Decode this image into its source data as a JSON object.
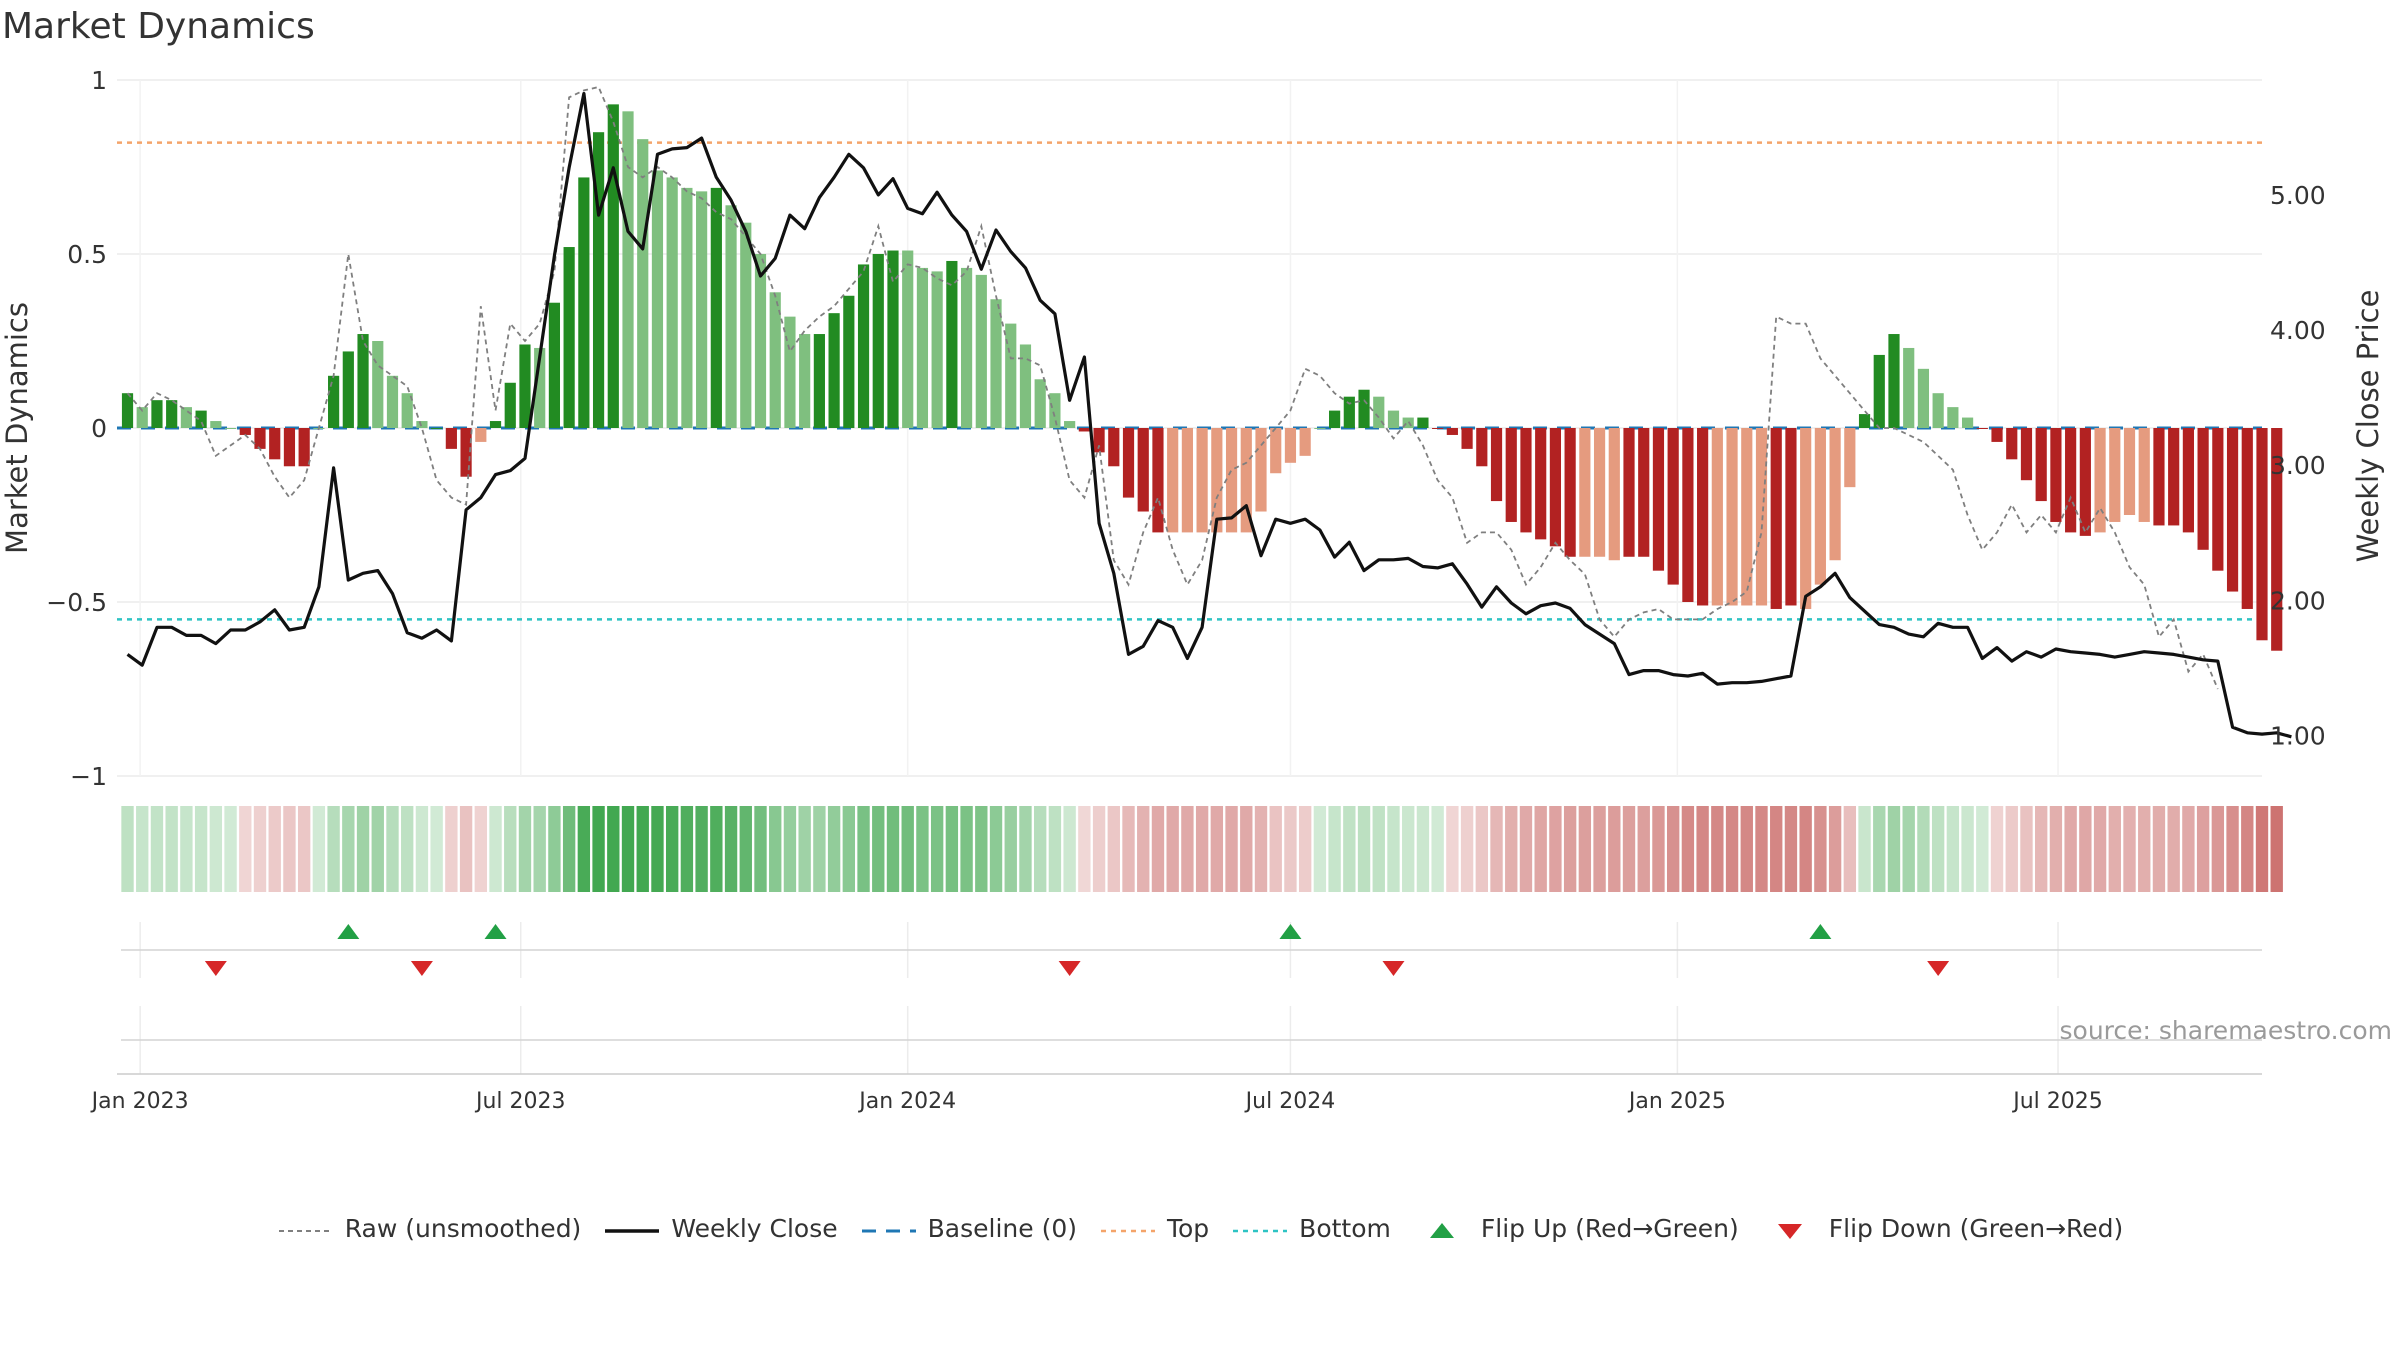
{
  "title": "Market Dynamics",
  "source": "source: sharemaestro.com",
  "colors": {
    "green_dark": "#228b22",
    "green_light": "#7fbf7f",
    "red_dark": "#b22222",
    "red_light": "#e59b7f",
    "raw": "#7f7f7f",
    "close": "#111111",
    "baseline": "#1f77b4",
    "top": "#f4a46a",
    "bottom": "#2ec4c4",
    "flip_up": "#22a045",
    "flip_down": "#d62728",
    "strip_green": "#2e9e3e",
    "strip_red": "#c0504d"
  },
  "legend": [
    {
      "label": "Raw (unsmoothed)",
      "key": "raw"
    },
    {
      "label": "Weekly Close",
      "key": "close"
    },
    {
      "label": "Baseline (0)",
      "key": "baseline"
    },
    {
      "label": "Top",
      "key": "top"
    },
    {
      "label": "Bottom",
      "key": "bottom"
    },
    {
      "label": "Flip Up (Red→Green)",
      "key": "flip_up"
    },
    {
      "label": "Flip Down (Green→Red)",
      "key": "flip_down"
    }
  ],
  "chart_data": {
    "type": "bar",
    "title": "Market Dynamics",
    "ylabel_left": "Market Dynamics",
    "ylabel_right": "Weekly Close Price",
    "ylim_left": [
      -1,
      1
    ],
    "ylim_right": [
      0.7,
      5.85
    ],
    "yticks_left": [
      1,
      0.5,
      0,
      -0.5,
      -1
    ],
    "yticks_left_labels": [
      "1",
      "0.5",
      "0",
      "−0.5",
      "−1"
    ],
    "yticks_right": [
      5.0,
      4.0,
      3.0,
      2.0,
      1.0
    ],
    "yticks_right_labels": [
      "5.00",
      "4.00",
      "3.00",
      "2.00",
      "1.00"
    ],
    "xticks": [
      "2023-01-01",
      "2023-07-01",
      "2024-01-01",
      "2024-07-01",
      "2025-01-01",
      "2025-07-01"
    ],
    "xtick_labels": [
      "Jan 2023",
      "Jul 2023",
      "Jan 2024",
      "Jul 2024",
      "Jan 2025",
      "Jul 2025"
    ],
    "x_range": [
      "2022-12-21",
      "2025-10-06"
    ],
    "grid": true,
    "legend_position": "bottom",
    "top_line": 0.82,
    "bottom_line": -0.55,
    "baseline": 0,
    "week_start": "2022-12-26",
    "series": [
      {
        "name": "Market Dynamics",
        "values": [
          0.1,
          0.06,
          0.08,
          0.08,
          0.06,
          0.05,
          0.02,
          0.0,
          -0.02,
          -0.06,
          -0.09,
          -0.11,
          -0.11,
          0.0,
          0.15,
          0.22,
          0.27,
          0.25,
          0.15,
          0.1,
          0.02,
          0.0,
          -0.06,
          -0.14,
          -0.04,
          0.02,
          0.13,
          0.24,
          0.23,
          0.36,
          0.52,
          0.72,
          0.85,
          0.93,
          0.91,
          0.83,
          0.74,
          0.72,
          0.69,
          0.68,
          0.69,
          0.64,
          0.59,
          0.5,
          0.39,
          0.32,
          0.27,
          0.27,
          0.33,
          0.38,
          0.47,
          0.5,
          0.51,
          0.51,
          0.46,
          0.45,
          0.48,
          0.46,
          0.44,
          0.37,
          0.3,
          0.24,
          0.14,
          0.1,
          0.02,
          -0.01,
          -0.07,
          -0.11,
          -0.2,
          -0.24,
          -0.3,
          -0.3,
          -0.3,
          -0.3,
          -0.3,
          -0.3,
          -0.3,
          -0.24,
          -0.13,
          -0.1,
          -0.08,
          0.0,
          0.05,
          0.09,
          0.11,
          0.09,
          0.05,
          0.03,
          0.03,
          0.0,
          -0.02,
          -0.06,
          -0.11,
          -0.21,
          -0.27,
          -0.3,
          -0.32,
          -0.34,
          -0.37,
          -0.37,
          -0.37,
          -0.38,
          -0.37,
          -0.37,
          -0.41,
          -0.45,
          -0.5,
          -0.51,
          -0.51,
          -0.51,
          -0.51,
          -0.51,
          -0.52,
          -0.51,
          -0.52,
          -0.45,
          -0.38,
          -0.17,
          0.04,
          0.21,
          0.27,
          0.23,
          0.17,
          0.1,
          0.06,
          0.03,
          0.0,
          -0.04,
          -0.09,
          -0.15,
          -0.21,
          -0.27,
          -0.3,
          -0.31,
          -0.3,
          -0.27,
          -0.25,
          -0.27,
          -0.28,
          -0.28,
          -0.3,
          -0.35,
          -0.41,
          -0.47,
          -0.52,
          -0.61,
          -0.64
        ],
        "colors": [
          "dg",
          "lg",
          "dg",
          "dg",
          "lg",
          "dg",
          "lg",
          "lg",
          "dr",
          "dr",
          "dr",
          "dr",
          "dr",
          "lg",
          "dg",
          "dg",
          "dg",
          "lg",
          "lg",
          "lg",
          "lg",
          "dg",
          "dr",
          "dr",
          "lr",
          "dg",
          "dg",
          "dg",
          "lg",
          "dg",
          "dg",
          "dg",
          "dg",
          "dg",
          "lg",
          "lg",
          "lg",
          "lg",
          "lg",
          "lg",
          "dg",
          "lg",
          "lg",
          "lg",
          "lg",
          "lg",
          "lg",
          "dg",
          "dg",
          "dg",
          "dg",
          "dg",
          "dg",
          "lg",
          "lg",
          "lg",
          "dg",
          "lg",
          "lg",
          "lg",
          "lg",
          "lg",
          "lg",
          "lg",
          "lg",
          "dr",
          "dr",
          "dr",
          "dr",
          "dr",
          "dr",
          "lr",
          "lr",
          "lr",
          "lr",
          "lr",
          "lr",
          "lr",
          "lr",
          "lr",
          "lr",
          "lg",
          "dg",
          "dg",
          "dg",
          "lg",
          "lg",
          "lg",
          "dg",
          "dr",
          "dr",
          "dr",
          "dr",
          "dr",
          "dr",
          "dr",
          "dr",
          "dr",
          "dr",
          "lr",
          "lr",
          "lr",
          "dr",
          "dr",
          "dr",
          "dr",
          "dr",
          "dr",
          "lr",
          "lr",
          "lr",
          "lr",
          "dr",
          "dr",
          "lr",
          "lr",
          "lr",
          "lr",
          "dg",
          "dg",
          "dg",
          "lg",
          "lg",
          "lg",
          "lg",
          "lg",
          "dr",
          "dr",
          "dr",
          "dr",
          "dr",
          "dr",
          "dr",
          "dr",
          "lr",
          "lr",
          "lr",
          "lr",
          "dr",
          "dr",
          "dr",
          "dr",
          "dr",
          "dr",
          "dr",
          "dr",
          "dr",
          "dr",
          "dr"
        ]
      },
      {
        "name": "Raw (unsmoothed)",
        "values": [
          0.1,
          0.05,
          0.1,
          0.08,
          0.05,
          0.02,
          -0.08,
          -0.05,
          -0.02,
          -0.06,
          -0.14,
          -0.2,
          -0.15,
          0.0,
          0.15,
          0.5,
          0.25,
          0.18,
          0.15,
          0.12,
          0.0,
          -0.15,
          -0.2,
          -0.22,
          0.35,
          0.05,
          0.3,
          0.25,
          0.3,
          0.45,
          0.95,
          0.97,
          0.98,
          0.88,
          0.75,
          0.72,
          0.75,
          0.72,
          0.68,
          0.66,
          0.62,
          0.6,
          0.55,
          0.5,
          0.38,
          0.22,
          0.28,
          0.32,
          0.35,
          0.4,
          0.45,
          0.58,
          0.42,
          0.47,
          0.46,
          0.43,
          0.41,
          0.45,
          0.58,
          0.38,
          0.2,
          0.2,
          0.18,
          0.03,
          -0.15,
          -0.2,
          -0.05,
          -0.38,
          -0.45,
          -0.3,
          -0.2,
          -0.35,
          -0.45,
          -0.38,
          -0.2,
          -0.12,
          -0.1,
          -0.05,
          0.0,
          0.05,
          0.17,
          0.15,
          0.1,
          0.07,
          0.08,
          0.03,
          -0.03,
          0.02,
          -0.05,
          -0.15,
          -0.2,
          -0.33,
          -0.3,
          -0.3,
          -0.35,
          -0.45,
          -0.4,
          -0.33,
          -0.38,
          -0.42,
          -0.55,
          -0.6,
          -0.55,
          -0.53,
          -0.52,
          -0.55,
          -0.55,
          -0.55,
          -0.52,
          -0.5,
          -0.47,
          -0.3,
          0.32,
          0.3,
          0.3,
          0.2,
          0.15,
          0.1,
          0.05,
          0.0,
          0.0,
          -0.02,
          -0.04,
          -0.08,
          -0.12,
          -0.25,
          -0.35,
          -0.3,
          -0.22,
          -0.3,
          -0.25,
          -0.3,
          -0.2,
          -0.3,
          -0.23,
          -0.3,
          -0.4,
          -0.45,
          -0.6,
          -0.55,
          -0.7,
          -0.65,
          -0.75
        ]
      },
      {
        "name": "Weekly Close",
        "values": [
          1.6,
          1.52,
          1.8,
          1.8,
          1.74,
          1.74,
          1.68,
          1.78,
          1.78,
          1.84,
          1.93,
          1.78,
          1.8,
          2.1,
          2.98,
          2.15,
          2.2,
          2.22,
          2.05,
          1.76,
          1.72,
          1.78,
          1.7,
          2.67,
          2.76,
          2.93,
          2.96,
          3.05,
          3.8,
          4.55,
          5.2,
          5.75,
          4.85,
          5.2,
          4.73,
          4.6,
          5.3,
          5.34,
          5.35,
          5.42,
          5.13,
          4.96,
          4.73,
          4.4,
          4.53,
          4.85,
          4.75,
          4.98,
          5.13,
          5.3,
          5.2,
          5.0,
          5.12,
          4.9,
          4.86,
          5.02,
          4.85,
          4.73,
          4.45,
          4.74,
          4.58,
          4.46,
          4.22,
          4.12,
          3.48,
          3.8,
          2.57,
          2.2,
          1.6,
          1.66,
          1.85,
          1.8,
          1.57,
          1.8,
          2.6,
          2.61,
          2.7,
          2.33,
          2.6,
          2.57,
          2.6,
          2.52,
          2.32,
          2.43,
          2.22,
          2.3,
          2.3,
          2.31,
          2.25,
          2.24,
          2.27,
          2.12,
          1.95,
          2.1,
          1.98,
          1.9,
          1.96,
          1.98,
          1.94,
          1.82,
          1.75,
          1.68,
          1.45,
          1.48,
          1.48,
          1.45,
          1.44,
          1.46,
          1.38,
          1.39,
          1.39,
          1.4,
          1.42,
          1.44,
          2.03,
          2.1,
          2.2,
          2.02,
          1.92,
          1.82,
          1.8,
          1.75,
          1.73,
          1.83,
          1.8,
          1.8,
          1.57,
          1.65,
          1.55,
          1.62,
          1.58,
          1.64,
          1.62,
          1.61,
          1.6,
          1.58,
          1.6,
          1.62,
          1.61,
          1.6,
          1.58,
          1.56,
          1.55,
          1.06,
          1.02,
          1.01,
          1.02,
          0.99
        ]
      }
    ],
    "flip_up_dates": [
      "2023-04-10",
      "2023-06-19",
      "2024-07-01",
      "2025-03-10"
    ],
    "flip_down_dates": [
      "2023-02-06",
      "2023-05-15",
      "2024-03-18",
      "2024-08-19",
      "2025-05-05"
    ]
  }
}
